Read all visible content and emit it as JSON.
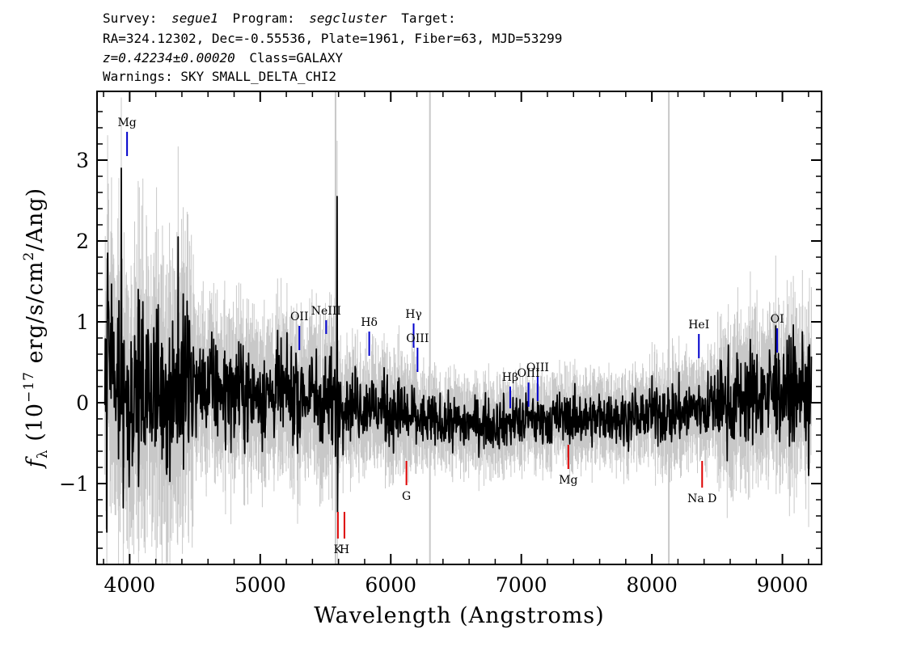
{
  "header": {
    "line1": {
      "survey_label": "Survey:",
      "survey_value": "segue1",
      "program_label": "Program:",
      "program_value": "segcluster",
      "target_label": "Target:"
    },
    "line2": "RA=324.12302, Dec=-0.55536, Plate=1961, Fiber=63, MJD=53299",
    "line3": {
      "redshift": "z=0.42234±0.00020",
      "class_text": "Class=GALAXY"
    },
    "line4": "Warnings: SKY SMALL_DELTA_CHI2"
  },
  "chart_data": {
    "type": "line",
    "xlabel": "Wavelength (Angstroms)",
    "ylabel": "f_λ (10^-17 erg/s/cm^2/Ang)",
    "ylabel_parts": {
      "f": "f",
      "sub": "λ",
      "pre": " (10",
      "exp1": "−17",
      "mid": " erg/s/cm",
      "exp2": "2",
      "post": "/Ang)"
    },
    "xlim": [
      3750,
      9300
    ],
    "ylim": [
      -2.0,
      3.85
    ],
    "x_ticks": [
      4000,
      5000,
      6000,
      7000,
      8000,
      9000
    ],
    "x_tick_labels": [
      "4000",
      "5000",
      "6000",
      "7000",
      "8000",
      "9000"
    ],
    "y_ticks": [
      -1,
      0,
      1,
      2,
      3
    ],
    "y_tick_labels": [
      "−1",
      "0",
      "1",
      "2",
      "3"
    ],
    "colors": {
      "flux": "#000000",
      "error": "#c8c8c8",
      "emission": "#0000cc",
      "absorption": "#dd0000"
    },
    "vertical_sky_lines": [
      5577,
      6300,
      8130
    ],
    "emission_lines": [
      {
        "label": "Mg",
        "x": 3980,
        "y_top": 3.35,
        "y_bottom": 3.05
      },
      {
        "label": "OII",
        "x": 5300,
        "y_top": 0.95,
        "y_bottom": 0.65
      },
      {
        "label": "NeIII",
        "x": 5505,
        "y_top": 1.02,
        "y_bottom": 0.85
      },
      {
        "label": "Hδ",
        "x": 5835,
        "y_top": 0.88,
        "y_bottom": 0.58
      },
      {
        "label": "Hγ",
        "x": 6175,
        "y_top": 0.98,
        "y_bottom": 0.68
      },
      {
        "label": "OIII",
        "x": 6205,
        "y_top": 0.68,
        "y_bottom": 0.38
      },
      {
        "label": "Hβ",
        "x": 6915,
        "y_top": 0.2,
        "y_bottom": -0.07
      },
      {
        "label": "OIII",
        "x": 7055,
        "y_top": 0.25,
        "y_bottom": -0.05
      },
      {
        "label": "OIII",
        "x": 7125,
        "y_top": 0.32,
        "y_bottom": 0.02
      },
      {
        "label": "HeI",
        "x": 8360,
        "y_top": 0.85,
        "y_bottom": 0.55
      },
      {
        "label": "OI",
        "x": 8960,
        "y_top": 0.92,
        "y_bottom": 0.62
      }
    ],
    "absorption_lines": [
      {
        "label": "K",
        "x": 5595,
        "y_top": -1.35,
        "y_bottom": -1.68
      },
      {
        "label": "H",
        "x": 5645,
        "y_top": -1.35,
        "y_bottom": -1.68
      },
      {
        "label": "G",
        "x": 6120,
        "y_top": -0.72,
        "y_bottom": -1.02
      },
      {
        "label": "Mg",
        "x": 7360,
        "y_top": -0.52,
        "y_bottom": -0.82
      },
      {
        "label": "Na D",
        "x": 8385,
        "y_top": -0.72,
        "y_bottom": -1.05
      }
    ],
    "flux_anchors": [
      [
        3810,
        0.2
      ],
      [
        3830,
        0.5
      ],
      [
        3900,
        0.2
      ],
      [
        4000,
        0.1
      ],
      [
        4200,
        0.15
      ],
      [
        4500,
        0.18
      ],
      [
        5000,
        0.1
      ],
      [
        5400,
        0.07
      ],
      [
        5700,
        0.0
      ],
      [
        6000,
        -0.1
      ],
      [
        6300,
        -0.24
      ],
      [
        6800,
        -0.25
      ],
      [
        7300,
        -0.2
      ],
      [
        7800,
        -0.18
      ],
      [
        8200,
        -0.12
      ],
      [
        8500,
        -0.02
      ],
      [
        8800,
        0.1
      ],
      [
        9100,
        0.15
      ],
      [
        9220,
        0.1
      ]
    ],
    "flux_spikes": [
      [
        3826,
        -1.6
      ],
      [
        3830,
        1.85
      ],
      [
        3935,
        2.9
      ],
      [
        3950,
        -1.3
      ],
      [
        4370,
        2.05
      ],
      [
        5590,
        2.55
      ],
      [
        5593,
        -1.35
      ],
      [
        8950,
        0.95
      ],
      [
        9200,
        -0.9
      ]
    ]
  }
}
